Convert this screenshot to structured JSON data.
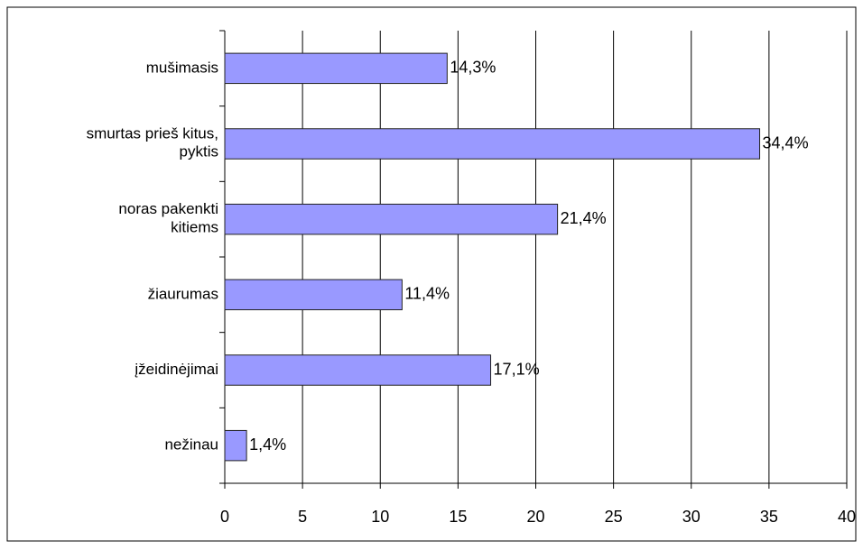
{
  "chart_data": {
    "type": "bar",
    "orientation": "horizontal",
    "categories": [
      "mušimasis",
      "smurtas prieš kitus,\npyktis",
      "noras pakenkti\nkitiems",
      "žiaurumas",
      "įžeidinėjimai",
      "nežinau"
    ],
    "values": [
      14.3,
      34.4,
      21.4,
      11.4,
      17.1,
      1.4
    ],
    "value_labels": [
      "14,3%",
      "34,4%",
      "21,4%",
      "11,4%",
      "17,1%",
      "1,4%"
    ],
    "color": "#9999ff",
    "xlim": [
      0,
      40
    ],
    "xticks": [
      0,
      5,
      10,
      15,
      20,
      25,
      30,
      35,
      40
    ],
    "grid": true
  }
}
